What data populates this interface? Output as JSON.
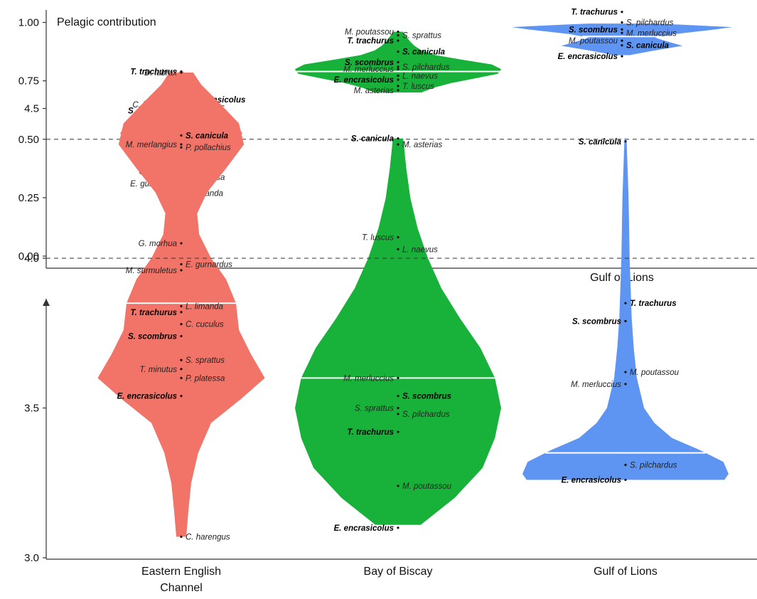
{
  "chart_data": [
    {
      "type": "violin",
      "title": "Pelagic contribution",
      "categories": [
        "Eastern English\nChannel",
        "Bay of Biscay",
        "Gulf of Lions"
      ],
      "yticks": [
        0.0,
        0.25,
        0.5,
        0.75,
        1.0
      ],
      "ytick_labels": [
        "0.00",
        "0.25",
        "0.50",
        "0.75",
        "1.00"
      ],
      "ylim": [
        -0.03,
        1.05
      ],
      "reference_line": 0.5,
      "colors": [
        "#f27468",
        "#18b13a",
        "#5f95f2"
      ],
      "violins": [
        {
          "category": "Eastern English\nChannel",
          "median": 0.52,
          "profile": [
            [
              0.27,
              0.07
            ],
            [
              0.3,
              0.09
            ],
            [
              0.33,
              0.11
            ],
            [
              0.36,
              0.13
            ],
            [
              0.4,
              0.17
            ],
            [
              0.44,
              0.23
            ],
            [
              0.47,
              0.33
            ],
            [
              0.5,
              0.52
            ],
            [
              0.52,
              0.62
            ],
            [
              0.55,
              0.58
            ],
            [
              0.58,
              0.42
            ],
            [
              0.62,
              0.26
            ],
            [
              0.66,
              0.17
            ],
            [
              0.7,
              0.12
            ],
            [
              0.74,
              0.08
            ],
            [
              0.77,
              0.05
            ],
            [
              0.79,
              0.02
            ]
          ],
          "species": [
            {
              "label": "T. trachurus",
              "y": 0.79,
              "bold": true
            },
            {
              "label": "E. encrasicolus",
              "y": 0.67,
              "bold": true
            },
            {
              "label": "C. harengus",
              "y": 0.648,
              "bold": false
            },
            {
              "label": "S. sprattus",
              "y": 0.638,
              "bold": false
            },
            {
              "label": "S. scombrus",
              "y": 0.622,
              "bold": true
            },
            {
              "label": "D. labrax",
              "y": 0.6,
              "bold": false
            },
            {
              "label": "T. minutus",
              "y": 0.562,
              "bold": false
            },
            {
              "label": "M. merlangius",
              "y": 0.522,
              "bold": false
            },
            {
              "label": "M. surmuletus",
              "y": 0.514,
              "bold": false
            },
            {
              "label": "P. pollachius",
              "y": 0.495,
              "bold": false
            },
            {
              "label": "S. canicula",
              "y": 0.435,
              "bold": true
            },
            {
              "label": "G. morhua",
              "y": 0.39,
              "bold": false
            },
            {
              "label": "C. cuculus",
              "y": 0.362,
              "bold": false
            },
            {
              "label": "P. platessa",
              "y": 0.338,
              "bold": false
            },
            {
              "label": "E. gurnardus",
              "y": 0.31,
              "bold": false
            },
            {
              "label": "L. limanda",
              "y": 0.27,
              "bold": false
            }
          ]
        },
        {
          "category": "Bay of Biscay",
          "median": 0.79,
          "profile": [
            [
              0.7,
              0.2
            ],
            [
              0.72,
              0.3
            ],
            [
              0.74,
              0.45
            ],
            [
              0.76,
              0.65
            ],
            [
              0.78,
              0.85
            ],
            [
              0.8,
              0.88
            ],
            [
              0.82,
              0.8
            ],
            [
              0.84,
              0.55
            ],
            [
              0.86,
              0.32
            ],
            [
              0.88,
              0.2
            ],
            [
              0.9,
              0.14
            ],
            [
              0.92,
              0.1
            ],
            [
              0.94,
              0.07
            ],
            [
              0.96,
              0.04
            ]
          ],
          "species": [
            {
              "label": "M. poutassou",
              "y": 0.96,
              "bold": false
            },
            {
              "label": "S. sprattus",
              "y": 0.945,
              "bold": false
            },
            {
              "label": "T. trachurus",
              "y": 0.922,
              "bold": true
            },
            {
              "label": "S. canicula",
              "y": 0.875,
              "bold": true
            },
            {
              "label": "S. scombrus",
              "y": 0.83,
              "bold": true
            },
            {
              "label": "S. pilchardus",
              "y": 0.81,
              "bold": false
            },
            {
              "label": "M. merluccius",
              "y": 0.8,
              "bold": false
            },
            {
              "label": "L. naevus",
              "y": 0.772,
              "bold": false
            },
            {
              "label": "E. encrasicolus",
              "y": 0.755,
              "bold": true
            },
            {
              "label": "T. luscus",
              "y": 0.728,
              "bold": false
            },
            {
              "label": "M. asterias",
              "y": 0.71,
              "bold": false
            }
          ]
        },
        {
          "category": "Gulf of Lions",
          "median": 0.94,
          "profile": [
            [
              0.86,
              0.07
            ],
            [
              0.88,
              0.3
            ],
            [
              0.9,
              0.55
            ],
            [
              0.92,
              0.4
            ],
            [
              0.935,
              0.3
            ],
            [
              0.95,
              0.48
            ],
            [
              0.97,
              0.85
            ],
            [
              0.98,
              1.0
            ],
            [
              0.99,
              0.55
            ],
            [
              0.995,
              0.3
            ]
          ],
          "species": [
            {
              "label": "T. trachurus",
              "y": 1.045,
              "bold": true
            },
            {
              "label": "S. pilchardus",
              "y": 1.0,
              "bold": false
            },
            {
              "label": "S. scombrus",
              "y": 0.97,
              "bold": true
            },
            {
              "label": "M. merluccius",
              "y": 0.955,
              "bold": false
            },
            {
              "label": "M. poutassou",
              "y": 0.922,
              "bold": false
            },
            {
              "label": "S. canicula",
              "y": 0.902,
              "bold": true
            },
            {
              "label": "E. encrasicolus",
              "y": 0.855,
              "bold": true
            }
          ]
        }
      ]
    },
    {
      "type": "violin",
      "title": "",
      "categories": [
        "Eastern English\nChannel",
        "Bay of Biscay",
        "Gulf of Lions"
      ],
      "yticks": [
        3.0,
        3.5,
        4.0,
        4.5
      ],
      "ytick_labels": [
        "3.0",
        "3.5",
        "4.0",
        "4.5"
      ],
      "ylim": [
        3.0,
        4.72
      ],
      "reference_line": 4.0,
      "colors": [
        "#f27468",
        "#18b13a",
        "#5f95f2"
      ],
      "violins": [
        {
          "category": "Eastern English\nChannel",
          "median": 3.85,
          "profile": [
            [
              3.07,
              0.05
            ],
            [
              3.15,
              0.07
            ],
            [
              3.25,
              0.1
            ],
            [
              3.35,
              0.17
            ],
            [
              3.45,
              0.3
            ],
            [
              3.53,
              0.6
            ],
            [
              3.6,
              0.84
            ],
            [
              3.68,
              0.7
            ],
            [
              3.76,
              0.58
            ],
            [
              3.85,
              0.55
            ],
            [
              3.93,
              0.45
            ],
            [
              4.0,
              0.3
            ],
            [
              4.08,
              0.18
            ],
            [
              4.15,
              0.16
            ],
            [
              4.22,
              0.26
            ],
            [
              4.3,
              0.45
            ],
            [
              4.38,
              0.63
            ],
            [
              4.45,
              0.58
            ],
            [
              4.52,
              0.38
            ],
            [
              4.58,
              0.2
            ],
            [
              4.62,
              0.12
            ]
          ],
          "species": [
            {
              "label": "D. labrax",
              "y": 4.62,
              "bold": false
            },
            {
              "label": "S. canicula",
              "y": 4.41,
              "bold": true
            },
            {
              "label": "M. merlangius",
              "y": 4.38,
              "bold": false
            },
            {
              "label": "P. pollachius",
              "y": 4.37,
              "bold": false
            },
            {
              "label": "G. morhua",
              "y": 4.05,
              "bold": false
            },
            {
              "label": "E. gurnardus",
              "y": 3.98,
              "bold": false
            },
            {
              "label": "M. surmuletus",
              "y": 3.96,
              "bold": false
            },
            {
              "label": "L. limanda",
              "y": 3.84,
              "bold": false
            },
            {
              "label": "T. trachurus",
              "y": 3.82,
              "bold": true
            },
            {
              "label": "C. cuculus",
              "y": 3.78,
              "bold": false
            },
            {
              "label": "S. scombrus",
              "y": 3.74,
              "bold": true
            },
            {
              "label": "S. sprattus",
              "y": 3.66,
              "bold": false
            },
            {
              "label": "T. minutus",
              "y": 3.63,
              "bold": false
            },
            {
              "label": "P. platessa",
              "y": 3.6,
              "bold": false
            },
            {
              "label": "E. encrasicolus",
              "y": 3.54,
              "bold": true
            },
            {
              "label": "C. harengus",
              "y": 3.07,
              "bold": false
            }
          ]
        },
        {
          "category": "Bay of Biscay",
          "median": 3.6,
          "profile": [
            [
              3.11,
              0.22
            ],
            [
              3.2,
              0.55
            ],
            [
              3.3,
              0.82
            ],
            [
              3.4,
              0.94
            ],
            [
              3.5,
              1.0
            ],
            [
              3.6,
              0.94
            ],
            [
              3.7,
              0.8
            ],
            [
              3.8,
              0.6
            ],
            [
              3.9,
              0.42
            ],
            [
              4.0,
              0.29
            ],
            [
              4.1,
              0.19
            ],
            [
              4.2,
              0.12
            ],
            [
              4.3,
              0.08
            ],
            [
              4.4,
              0.05
            ]
          ],
          "species": [
            {
              "label": "S. canicula",
              "y": 4.4,
              "bold": true
            },
            {
              "label": "M. asterias",
              "y": 4.38,
              "bold": false
            },
            {
              "label": "T. luscus",
              "y": 4.07,
              "bold": false
            },
            {
              "label": "L. naevus",
              "y": 4.03,
              "bold": false
            },
            {
              "label": "M. merluccius",
              "y": 3.6,
              "bold": false
            },
            {
              "label": "S. scombrus",
              "y": 3.54,
              "bold": true
            },
            {
              "label": "S. sprattus",
              "y": 3.5,
              "bold": false
            },
            {
              "label": "S. pilchardus",
              "y": 3.48,
              "bold": false
            },
            {
              "label": "T. trachurus",
              "y": 3.42,
              "bold": true
            },
            {
              "label": "M. poutassou",
              "y": 3.24,
              "bold": false
            },
            {
              "label": "E. encrasicolus",
              "y": 3.1,
              "bold": true
            }
          ]
        },
        {
          "category": "Gulf of Lions",
          "median": 3.35,
          "profile": [
            [
              3.26,
              0.96
            ],
            [
              3.28,
              1.0
            ],
            [
              3.32,
              0.95
            ],
            [
              3.36,
              0.72
            ],
            [
              3.4,
              0.45
            ],
            [
              3.45,
              0.28
            ],
            [
              3.5,
              0.18
            ],
            [
              3.6,
              0.11
            ],
            [
              3.7,
              0.08
            ],
            [
              3.8,
              0.06
            ],
            [
              3.9,
              0.05
            ],
            [
              4.0,
              0.04
            ],
            [
              4.1,
              0.035
            ],
            [
              4.2,
              0.03
            ],
            [
              4.3,
              0.02
            ],
            [
              4.4,
              0.01
            ]
          ],
          "species": [
            {
              "label": "S. canicula",
              "y": 4.39,
              "bold": true
            },
            {
              "label": "T. trachurus",
              "y": 3.85,
              "bold": true
            },
            {
              "label": "S. scombrus",
              "y": 3.79,
              "bold": true
            },
            {
              "label": "M. poutassou",
              "y": 3.62,
              "bold": false
            },
            {
              "label": "M. merluccius",
              "y": 3.58,
              "bold": false
            },
            {
              "label": "S. pilchardus",
              "y": 3.31,
              "bold": false
            },
            {
              "label": "E. encrasicolus",
              "y": 3.26,
              "bold": true
            }
          ]
        }
      ]
    }
  ]
}
